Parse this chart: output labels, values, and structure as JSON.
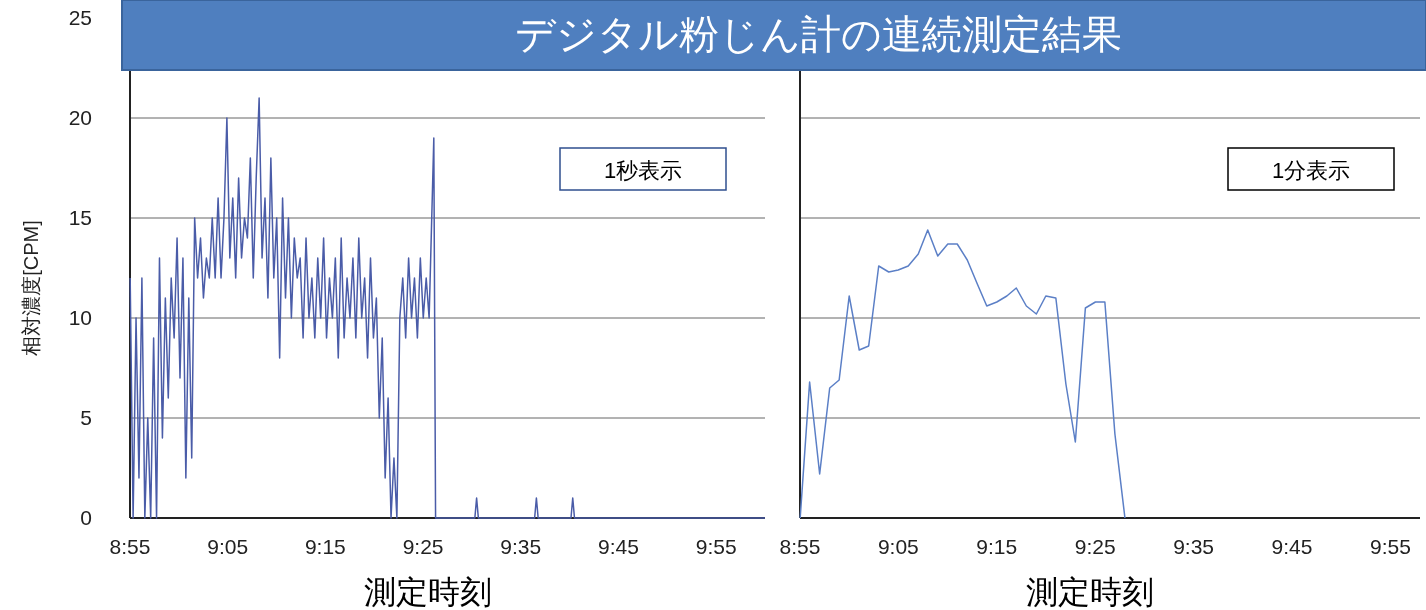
{
  "chart_data": [
    {
      "type": "line",
      "title": "デジタル粉じん計の連続測定結果",
      "xlabel": "測定時刻",
      "ylabel": "相対濃度[CPM]",
      "annotations": [
        "1秒表示"
      ],
      "grid": "y",
      "line_style": "solid",
      "marker": "none",
      "xlim": [
        8.9167,
        10.0
      ],
      "ylim": [
        0,
        25
      ],
      "yticks": [
        0,
        5,
        10,
        15,
        20,
        25
      ],
      "xticks": [
        {
          "value": 8.9167,
          "label": "8:55"
        },
        {
          "value": 9.0833,
          "label": "9:05"
        },
        {
          "value": 9.25,
          "label": "9:15"
        },
        {
          "value": 9.4167,
          "label": "9:25"
        },
        {
          "value": 9.5833,
          "label": "9:35"
        },
        {
          "value": 9.75,
          "label": "9:45"
        },
        {
          "value": 9.9167,
          "label": "9:55"
        }
      ],
      "series": [
        {
          "color": "#4a5ca8",
          "x": [
            8.917,
            8.922,
            8.927,
            8.932,
            8.937,
            8.942,
            8.947,
            8.952,
            8.957,
            8.962,
            8.967,
            8.972,
            8.977,
            8.982,
            8.987,
            8.992,
            8.997,
            9.002,
            9.007,
            9.012,
            9.017,
            9.022,
            9.027,
            9.032,
            9.037,
            9.042,
            9.047,
            9.052,
            9.057,
            9.062,
            9.067,
            9.072,
            9.077,
            9.082,
            9.087,
            9.092,
            9.097,
            9.102,
            9.107,
            9.112,
            9.117,
            9.122,
            9.127,
            9.132,
            9.137,
            9.142,
            9.147,
            9.152,
            9.157,
            9.162,
            9.167,
            9.172,
            9.177,
            9.182,
            9.187,
            9.192,
            9.197,
            9.202,
            9.207,
            9.212,
            9.217,
            9.222,
            9.227,
            9.232,
            9.237,
            9.242,
            9.247,
            9.252,
            9.257,
            9.262,
            9.267,
            9.272,
            9.277,
            9.282,
            9.287,
            9.292,
            9.297,
            9.302,
            9.307,
            9.312,
            9.317,
            9.322,
            9.327,
            9.332,
            9.337,
            9.342,
            9.347,
            9.352,
            9.357,
            9.362,
            9.367,
            9.372,
            9.377,
            9.382,
            9.387,
            9.392,
            9.397,
            9.402,
            9.407,
            9.412,
            9.417,
            9.422,
            9.427,
            9.435,
            9.438,
            9.505,
            9.508,
            9.511,
            9.607,
            9.61,
            9.613,
            9.669,
            9.672,
            9.675,
            10.0
          ],
          "values": [
            12,
            0,
            10,
            2,
            12,
            0,
            5,
            0,
            9,
            0,
            13,
            4,
            11,
            6,
            12,
            9,
            14,
            7,
            13,
            2,
            11,
            3,
            15,
            12,
            14,
            11,
            13,
            12,
            15,
            12,
            16,
            12,
            15,
            20,
            13,
            16,
            12,
            17,
            13,
            15,
            14,
            18,
            12,
            17,
            21,
            13,
            16,
            11,
            18,
            12,
            15,
            8,
            16,
            11,
            15,
            10,
            14,
            12,
            13,
            9,
            14,
            10,
            12,
            9,
            13,
            10,
            14,
            9,
            12,
            10,
            13,
            8,
            14,
            9,
            12,
            10,
            13,
            9,
            14,
            10,
            12,
            8,
            13,
            9,
            11,
            5,
            9,
            2,
            6,
            0,
            3,
            0,
            10,
            12,
            9,
            13,
            10,
            12,
            9,
            13,
            10,
            12,
            10,
            19,
            0,
            0,
            1,
            0,
            0,
            1,
            0,
            0,
            1,
            0,
            0
          ]
        }
      ]
    },
    {
      "type": "line",
      "xlabel": "測定時刻",
      "annotations": [
        "1分表示"
      ],
      "grid": "y",
      "line_style": "solid",
      "marker": "none",
      "tick_labels": "x",
      "xlim": [
        8.9167,
        9.9667
      ],
      "ylim": [
        0,
        25
      ],
      "yticks": [
        0,
        5,
        10,
        15,
        20,
        25
      ],
      "xticks": [
        {
          "value": 8.9167,
          "label": "8:55"
        },
        {
          "value": 9.0833,
          "label": "9:05"
        },
        {
          "value": 9.25,
          "label": "9:15"
        },
        {
          "value": 9.4167,
          "label": "9:25"
        },
        {
          "value": 9.5833,
          "label": "9:35"
        },
        {
          "value": 9.75,
          "label": "9:45"
        },
        {
          "value": 9.9167,
          "label": "9:55"
        }
      ],
      "series": [
        {
          "color": "#5b7fc6",
          "x": [
            8.917,
            8.933,
            8.95,
            8.967,
            8.983,
            9.0,
            9.017,
            9.033,
            9.05,
            9.067,
            9.083,
            9.1,
            9.117,
            9.133,
            9.15,
            9.167,
            9.183,
            9.2,
            9.217,
            9.233,
            9.25,
            9.267,
            9.283,
            9.3,
            9.317,
            9.333,
            9.35,
            9.367,
            9.383,
            9.4,
            9.417,
            9.433,
            9.45,
            9.467
          ],
          "values": [
            0,
            6.8,
            2.2,
            6.5,
            6.9,
            11.1,
            8.4,
            8.6,
            12.6,
            12.3,
            12.4,
            12.6,
            13.2,
            14.4,
            13.1,
            13.7,
            13.7,
            12.9,
            11.7,
            10.6,
            10.8,
            11.1,
            11.5,
            10.6,
            10.2,
            11.1,
            11.0,
            6.7,
            3.8,
            10.5,
            10.8,
            10.8,
            4.2,
            0
          ]
        }
      ]
    }
  ]
}
